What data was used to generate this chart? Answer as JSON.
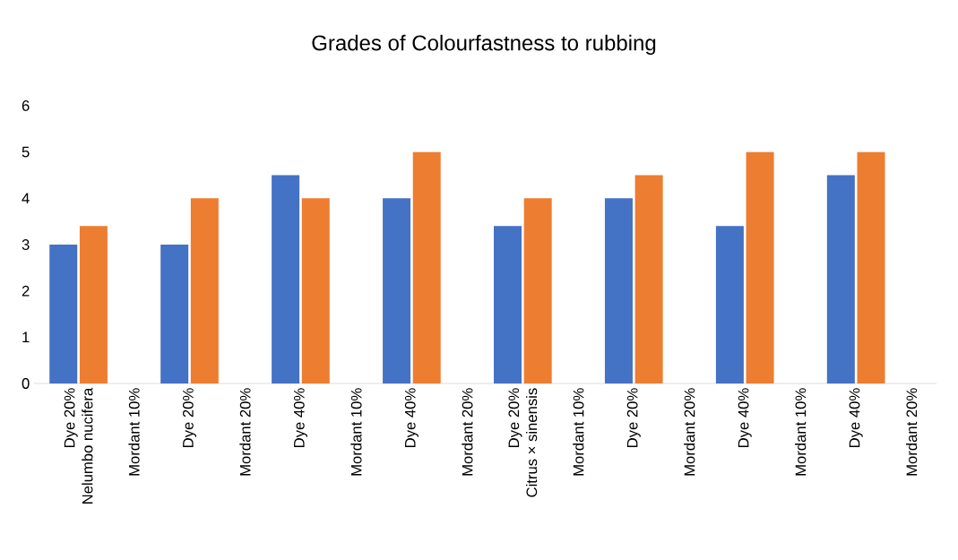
{
  "chart_data": {
    "type": "bar",
    "title": "Grades of Colourfastness to rubbing",
    "categories": [
      "Dye 20%\nNelumbo nucifera",
      "Mordant 10%",
      "Dye 20%",
      "Mordant 20%",
      "Dye 40%",
      "Mordant 10%",
      "Dye 40%",
      "Mordant 20%",
      "Dye 20%\nCitrus × sinensis",
      "Mordant 10%",
      "Dye 20%",
      "Mordant 20%",
      "Dye 40%",
      "Mordant 10%",
      "Dye 40%",
      "Mordant 20%"
    ],
    "series": [
      {
        "color": "#4472c4",
        "values": [
          3,
          null,
          3,
          null,
          4.5,
          null,
          4,
          null,
          3.4,
          null,
          4,
          null,
          3.4,
          null,
          4.5,
          null
        ]
      },
      {
        "color": "#ed7d31",
        "values": [
          3.4,
          null,
          4,
          null,
          4,
          null,
          5,
          null,
          4,
          null,
          4.5,
          null,
          5,
          null,
          5,
          null
        ]
      }
    ],
    "ylim": [
      0,
      6
    ],
    "yticks": [
      0,
      1,
      2,
      3,
      4,
      5,
      6
    ],
    "grid": false
  }
}
